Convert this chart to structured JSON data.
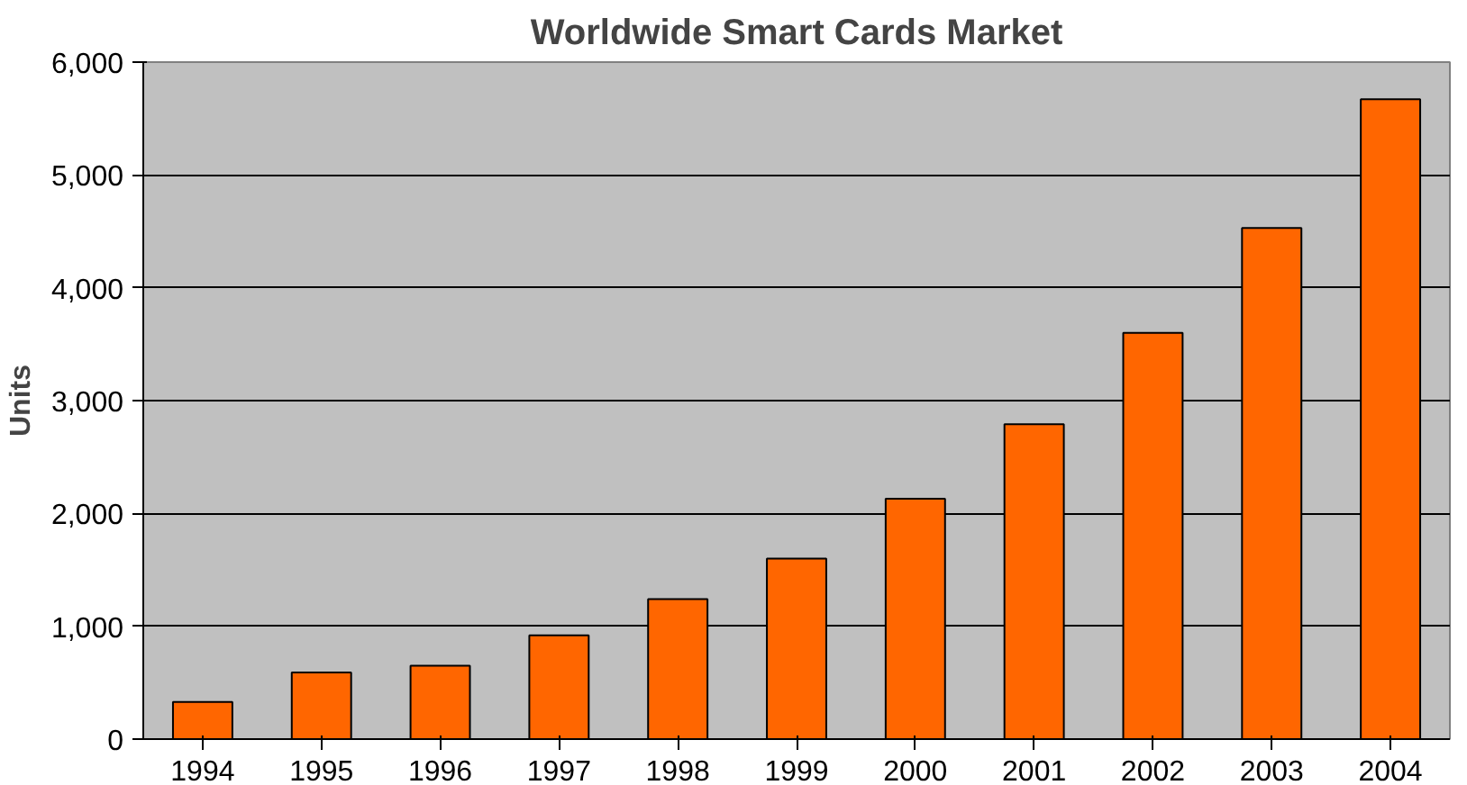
{
  "chart_data": {
    "type": "bar",
    "title": "Worldwide Smart Cards Market",
    "ylabel": "Units",
    "categories": [
      "1994",
      "1995",
      "1996",
      "1997",
      "1998",
      "1999",
      "2000",
      "2001",
      "2002",
      "2003",
      "2004"
    ],
    "values": [
      330,
      590,
      650,
      920,
      1240,
      1600,
      2130,
      2790,
      3600,
      4530,
      5670
    ],
    "color": "#ff6600",
    "ylim": [
      0,
      6000
    ],
    "yticks": [
      {
        "value": 0,
        "label": "0"
      },
      {
        "value": 1000,
        "label": "1,000"
      },
      {
        "value": 2000,
        "label": "2,000"
      },
      {
        "value": 3000,
        "label": "3,000"
      },
      {
        "value": 4000,
        "label": "4,000"
      },
      {
        "value": 5000,
        "label": "5,000"
      },
      {
        "value": 6000,
        "label": "6,000"
      }
    ],
    "grid": "y"
  }
}
